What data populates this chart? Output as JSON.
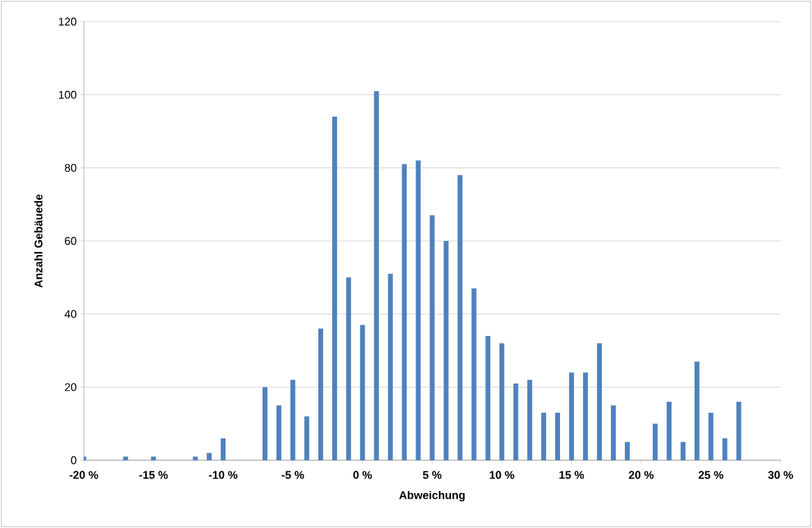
{
  "chart_data": {
    "type": "bar",
    "xlabel": "Abweichung",
    "ylabel": "Anzahl Gebäuede",
    "x": [
      -20,
      -17,
      -15,
      -12,
      -11,
      -10,
      -7,
      -6,
      -5,
      -4,
      -3,
      -2,
      -1,
      0,
      1,
      2,
      3,
      4,
      5,
      6,
      7,
      8,
      9,
      10,
      11,
      12,
      13,
      14,
      15,
      16,
      17,
      18,
      19,
      21,
      22,
      23,
      24,
      25,
      26,
      27
    ],
    "values": [
      1,
      1,
      1,
      1,
      2,
      6,
      20,
      15,
      22,
      12,
      36,
      94,
      50,
      37,
      101,
      51,
      81,
      82,
      67,
      60,
      78,
      47,
      34,
      32,
      21,
      22,
      13,
      13,
      24,
      24,
      32,
      15,
      5,
      10,
      16,
      5,
      27,
      13,
      6,
      16
    ],
    "color": "#4f81bd",
    "xlim": [
      -20,
      30
    ],
    "xticks": [
      {
        "value": -20,
        "label": "-20 %"
      },
      {
        "value": -15,
        "label": "-15 %"
      },
      {
        "value": -10,
        "label": "-10 %"
      },
      {
        "value": -5,
        "label": "-5 %"
      },
      {
        "value": 0,
        "label": "0 %"
      },
      {
        "value": 5,
        "label": "5 %"
      },
      {
        "value": 10,
        "label": "10 %"
      },
      {
        "value": 15,
        "label": "15 %"
      },
      {
        "value": 20,
        "label": "20 %"
      },
      {
        "value": 25,
        "label": "25 %"
      },
      {
        "value": 30,
        "label": "30 %"
      }
    ],
    "ylim": [
      0,
      120
    ],
    "yticks": [
      0,
      20,
      40,
      60,
      80,
      100,
      120
    ],
    "grid": "y"
  }
}
